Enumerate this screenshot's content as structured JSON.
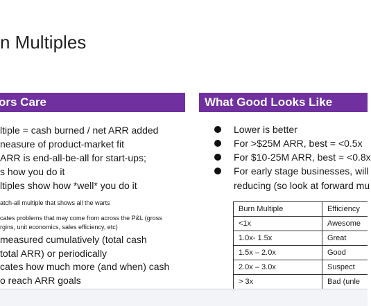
{
  "title": "n Multiples",
  "left_header": "ors Care",
  "left_lines": [
    {
      "text": "ltiple = cash burned / net ARR added",
      "small": false
    },
    {
      "text": "neasure of product-market fit",
      "small": false
    },
    {
      "text": "ARR is end-all-be-all for start-ups;",
      "small": false
    },
    {
      "text": "s how you do it",
      "small": false
    },
    {
      "text": "ltiples show how *well* you do it",
      "small": false
    },
    {
      "text": "atch-all multiple that shows all the warts",
      "small": true
    },
    {
      "text": "cates problems that may come from across the P&L (gross",
      "small": true
    },
    {
      "text": "rgins, unit economics, sales efficiency, etc)",
      "small": true
    },
    {
      "text": "measured cumulatively (total cash",
      "small": false
    },
    {
      "text": "total ARR) or periodically",
      "small": false
    },
    {
      "text": "cates how much more (and when) cash",
      "small": false
    },
    {
      "text": "o reach ARR goals",
      "small": false
    }
  ],
  "right_header": "What Good Looks Like",
  "right_bullets": [
    "Lower is better",
    "For >$25M ARR, best = <0.5x",
    "For $10-25M ARR, best = <0.8x",
    "For early stage businesses, will"
  ],
  "right_continuation": "reducing (so look at forward mu",
  "table": {
    "rows": [
      [
        "Burn Multiple",
        "Efficiency"
      ],
      [
        "<1x",
        "Awesome"
      ],
      [
        "1.0x- 1.5x",
        "Great"
      ],
      [
        "1.5x – 2.0x",
        "Good"
      ],
      [
        "2.0x – 3.0x",
        "Suspect"
      ],
      [
        "> 3x",
        "Bad (unle"
      ]
    ]
  },
  "colors": {
    "header_bg": "#7030a0",
    "header_text": "#ffffff"
  }
}
